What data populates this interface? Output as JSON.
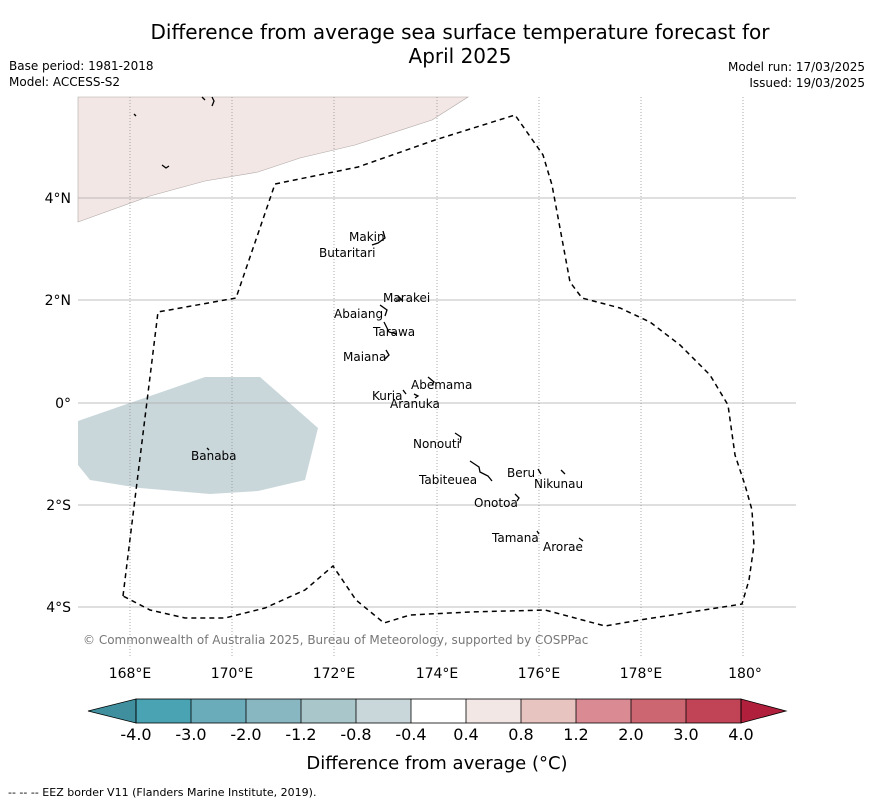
{
  "title_line1": "Difference from average sea surface temperature forecast for",
  "title_line2": "April 2025",
  "meta_left": {
    "base_period": "Base period: 1981-2018",
    "model": "Model: ACCESS-S2"
  },
  "meta_right": {
    "model_run": "Model run: 17/03/2025",
    "issued": "Issued: 19/03/2025"
  },
  "copyright": "© Commonwealth of Australia 2025, Bureau of Meteorology, supported by COSPPac",
  "lon_labels": [
    "168°E",
    "170°E",
    "172°E",
    "174°E",
    "176°E",
    "178°E",
    "180°"
  ],
  "lat_labels": [
    "4°N",
    "2°N",
    "0°",
    "2°S",
    "4°S"
  ],
  "islands": [
    {
      "name": "Makin"
    },
    {
      "name": "Butaritari"
    },
    {
      "name": "Marakei"
    },
    {
      "name": "Abaiang"
    },
    {
      "name": "Tarawa"
    },
    {
      "name": "Maiana"
    },
    {
      "name": "Abemama"
    },
    {
      "name": "Kuria"
    },
    {
      "name": "Aranuka"
    },
    {
      "name": "Banaba"
    },
    {
      "name": "Nonouti"
    },
    {
      "name": "Beru"
    },
    {
      "name": "Tabiteuea"
    },
    {
      "name": "Nikunau"
    },
    {
      "name": "Onotoa"
    },
    {
      "name": "Tamana"
    },
    {
      "name": "Arorae"
    }
  ],
  "colorbar": {
    "labels": [
      "-4.0",
      "-3.0",
      "-2.0",
      "-1.2",
      "-0.8",
      "-0.4",
      "0.4",
      "0.8",
      "1.2",
      "2.0",
      "3.0",
      "4.0"
    ],
    "colors": [
      "#3f8f9e",
      "#4aa3b3",
      "#6aacb9",
      "#89b7c1",
      "#a9c6cb",
      "#c9d7db",
      "#ffffff",
      "#f3e7e5",
      "#e8c4c0",
      "#d98a92",
      "#cc6671",
      "#c14456",
      "#b01f3c"
    ],
    "label": "Difference from average (°C)"
  },
  "field_colors": {
    "warm_band": "#f3e7e5",
    "cool_patch": "#c9d7db"
  },
  "footer": "--  --  -- EEZ border V11 (Flanders Marine Institute, 2019)."
}
